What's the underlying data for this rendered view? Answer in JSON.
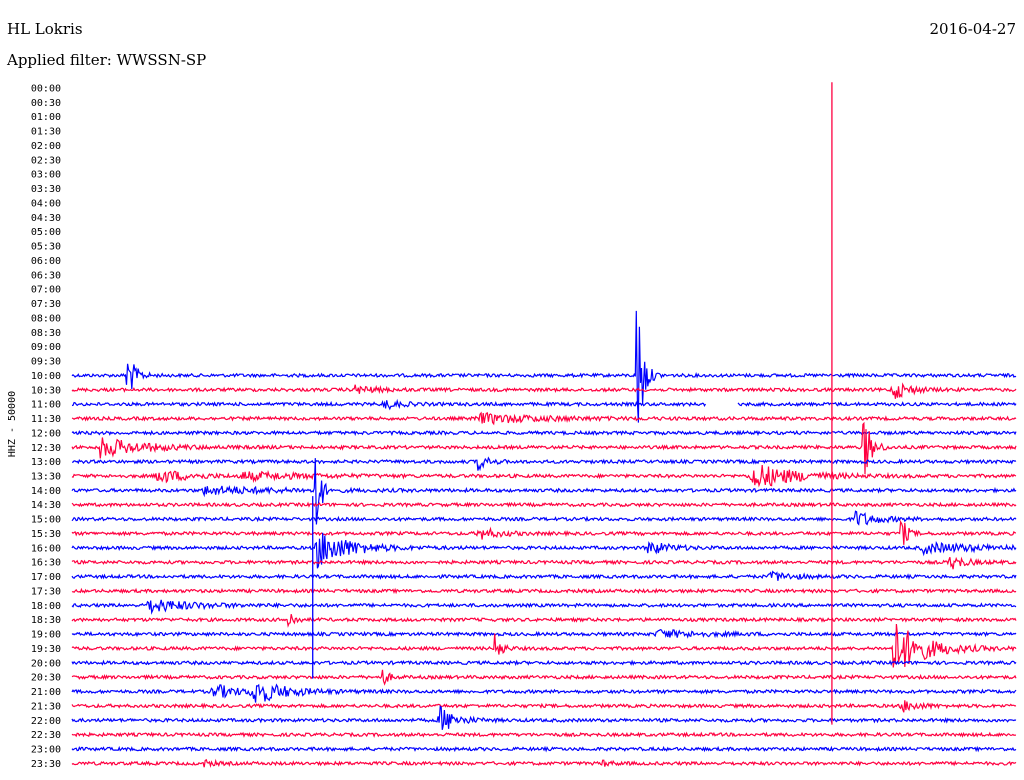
{
  "header": {
    "station": "HL Lokris",
    "date": "2016-04-27",
    "filter": "Applied filter: WWSSN-SP"
  },
  "chart_data": {
    "type": "line",
    "title": "HL Lokris",
    "subtitle": "Applied filter: WWSSN-SP",
    "ylabel": "HHZ - 50000",
    "row_labels": [
      "00:00",
      "00:30",
      "01:00",
      "01:30",
      "02:00",
      "02:30",
      "03:00",
      "03:30",
      "04:00",
      "04:30",
      "05:00",
      "05:30",
      "06:00",
      "06:30",
      "07:00",
      "07:30",
      "08:00",
      "08:30",
      "09:00",
      "09:30",
      "10:00",
      "10:30",
      "11:00",
      "11:30",
      "12:00",
      "12:30",
      "13:00",
      "13:30",
      "14:00",
      "14:30",
      "15:00",
      "15:30",
      "16:00",
      "16:30",
      "17:00",
      "17:30",
      "18:00",
      "18:30",
      "19:00",
      "19:30",
      "20:00",
      "20:30",
      "21:00",
      "21:30",
      "22:00",
      "22:30",
      "23:00",
      "23:30"
    ],
    "first_trace_start_minutes": 590,
    "colors": {
      "blue": "#0000ff",
      "red": "#ff0040"
    },
    "noise_amplitude": 1.6,
    "events": [
      {
        "row": 19,
        "t": 0.7,
        "amp": 14,
        "dur": 0.035,
        "kind": "swarm"
      },
      {
        "row": 19,
        "t": 0.76,
        "amp": 18,
        "dur": 0.05,
        "kind": "swarm"
      },
      {
        "row": 20,
        "t": 0.06,
        "amp": 22,
        "dur": 0.02,
        "kind": "spike"
      },
      {
        "row": 20,
        "t": 0.6,
        "amp": 80,
        "dur": 0.015,
        "kind": "spike"
      },
      {
        "row": 21,
        "t": 0.3,
        "amp": 4,
        "dur": 0.02,
        "kind": "burst"
      },
      {
        "row": 21,
        "t": 0.87,
        "amp": 10,
        "dur": 0.015,
        "kind": "burst"
      },
      {
        "row": 22,
        "t": 0.33,
        "amp": 5,
        "dur": 0.015,
        "kind": "burst"
      },
      {
        "row": 23,
        "t": 0.43,
        "amp": 5,
        "dur": 0.06,
        "kind": "burst"
      },
      {
        "row": 25,
        "t": 0.03,
        "amp": 10,
        "dur": 0.04,
        "kind": "burst"
      },
      {
        "row": 25,
        "t": 0.84,
        "amp": 30,
        "dur": 0.02,
        "kind": "spike"
      },
      {
        "row": 26,
        "t": 0.43,
        "amp": 8,
        "dur": 0.01,
        "kind": "burst"
      },
      {
        "row": 27,
        "t": 0.09,
        "amp": 7,
        "dur": 0.03,
        "kind": "burst"
      },
      {
        "row": 27,
        "t": 0.18,
        "amp": 4,
        "dur": 0.06,
        "kind": "burst"
      },
      {
        "row": 27,
        "t": 0.72,
        "amp": 14,
        "dur": 0.04,
        "kind": "burst"
      },
      {
        "row": 28,
        "t": 0.14,
        "amp": 4,
        "dur": 0.07,
        "kind": "burst"
      },
      {
        "row": 28,
        "t": 0.26,
        "amp": 60,
        "dur": 0.01,
        "kind": "spike"
      },
      {
        "row": 30,
        "t": 0.83,
        "amp": 8,
        "dur": 0.02,
        "kind": "burst"
      },
      {
        "row": 31,
        "t": 0.43,
        "amp": 6,
        "dur": 0.02,
        "kind": "burst"
      },
      {
        "row": 31,
        "t": 0.88,
        "amp": 14,
        "dur": 0.015,
        "kind": "spike"
      },
      {
        "row": 32,
        "t": 0.26,
        "amp": 20,
        "dur": 0.03,
        "kind": "burst"
      },
      {
        "row": 32,
        "t": 0.61,
        "amp": 7,
        "dur": 0.02,
        "kind": "burst"
      },
      {
        "row": 32,
        "t": 0.9,
        "amp": 5,
        "dur": 0.06,
        "kind": "burst"
      },
      {
        "row": 33,
        "t": 0.93,
        "amp": 7,
        "dur": 0.015,
        "kind": "burst"
      },
      {
        "row": 34,
        "t": 0.74,
        "amp": 5,
        "dur": 0.02,
        "kind": "burst"
      },
      {
        "row": 36,
        "t": 0.08,
        "amp": 7,
        "dur": 0.04,
        "kind": "burst"
      },
      {
        "row": 37,
        "t": 0.23,
        "amp": 10,
        "dur": 0.015,
        "kind": "spike"
      },
      {
        "row": 38,
        "t": 0.62,
        "amp": 4,
        "dur": 0.04,
        "kind": "burst"
      },
      {
        "row": 39,
        "t": 0.45,
        "amp": 14,
        "dur": 0.015,
        "kind": "spike"
      },
      {
        "row": 39,
        "t": 0.87,
        "amp": 28,
        "dur": 0.03,
        "kind": "burst"
      },
      {
        "row": 41,
        "t": 0.33,
        "amp": 8,
        "dur": 0.015,
        "kind": "spike"
      },
      {
        "row": 42,
        "t": 0.15,
        "amp": 8,
        "dur": 0.02,
        "kind": "burst"
      },
      {
        "row": 42,
        "t": 0.19,
        "amp": 14,
        "dur": 0.03,
        "kind": "burst"
      },
      {
        "row": 43,
        "t": 0.88,
        "amp": 6,
        "dur": 0.015,
        "kind": "burst"
      },
      {
        "row": 44,
        "t": 0.39,
        "amp": 14,
        "dur": 0.015,
        "kind": "burst"
      },
      {
        "row": 47,
        "t": 0.14,
        "amp": 3,
        "dur": 0.01,
        "kind": "burst"
      },
      {
        "row": 47,
        "t": 0.56,
        "amp": 3,
        "dur": 0.01,
        "kind": "burst"
      }
    ],
    "long_spikes": [
      {
        "x_frac": 0.255,
        "from_row": 28.4,
        "to_row": 41.1,
        "color": "blue"
      },
      {
        "x_frac": 0.805,
        "from_row": -0.4,
        "to_row": 44.3,
        "color": "red"
      }
    ],
    "gap": {
      "row": 22,
      "t_start": 0.672,
      "t_end": 0.705
    }
  }
}
